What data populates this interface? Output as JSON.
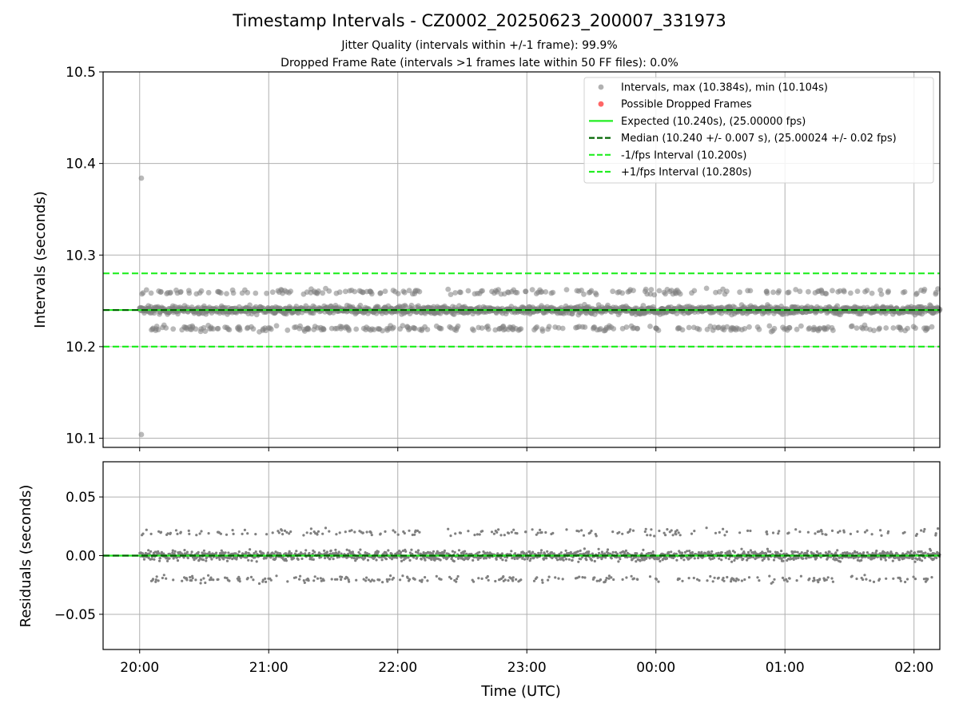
{
  "chart_data": {
    "type": "scatter",
    "title": "Timestamp Intervals - CZ0002_20250623_200007_331973",
    "subtitles": [
      "Jitter Quality (intervals within +/-1 frame): 99.9%",
      "Dropped Frame Rate (intervals >1 frames late within 50 FF files): 0.0%"
    ],
    "xlabel": "Time (UTC)",
    "x_ticks": [
      "20:00",
      "21:00",
      "22:00",
      "23:00",
      "00:00",
      "01:00",
      "02:00"
    ],
    "x_range_minutes_from_start": [
      -17,
      372
    ],
    "top_panel": {
      "ylabel": "Intervals (seconds)",
      "ylim": [
        10.09,
        10.5
      ],
      "y_ticks": [
        "10.1",
        "10.2",
        "10.3",
        "10.4",
        "10.5"
      ],
      "expected": 10.24,
      "median": 10.24,
      "lower_bound": 10.2,
      "upper_bound": 10.28,
      "max": 10.384,
      "min": 10.104,
      "dropped_frame_count": 0,
      "legend_position": "upper right",
      "legend": [
        {
          "label": "Intervals, max (10.384s), min (10.104s)",
          "kind": "dot",
          "color": "#9e9e9e"
        },
        {
          "label": "Possible Dropped Frames",
          "kind": "dot",
          "color": "#ff6666"
        },
        {
          "label": "Expected (10.240s), (25.00000 fps)",
          "kind": "line",
          "color": "#22ee22"
        },
        {
          "label": "Median (10.240 +/- 0.007 s), (25.00024 +/- 0.02 fps)",
          "kind": "dash",
          "color": "#006400"
        },
        {
          "label": "-1/fps Interval (10.200s)",
          "kind": "dash",
          "color": "#22ee22"
        },
        {
          "label": "+1/fps Interval (10.280s)",
          "kind": "dash",
          "color": "#22ee22"
        }
      ]
    },
    "bottom_panel": {
      "ylabel": "Residuals (seconds)",
      "ylim": [
        -0.08,
        0.08
      ],
      "y_ticks": [
        "0.05",
        "0.00",
        "−0.05"
      ],
      "zero_line": 0.0
    },
    "sample_count": 2100,
    "grid": true,
    "colors": {
      "points": "#808080",
      "expected": "#22ee22",
      "median": "#006400",
      "bounds": "#22ee22",
      "grid": "#b0b0b0"
    }
  }
}
